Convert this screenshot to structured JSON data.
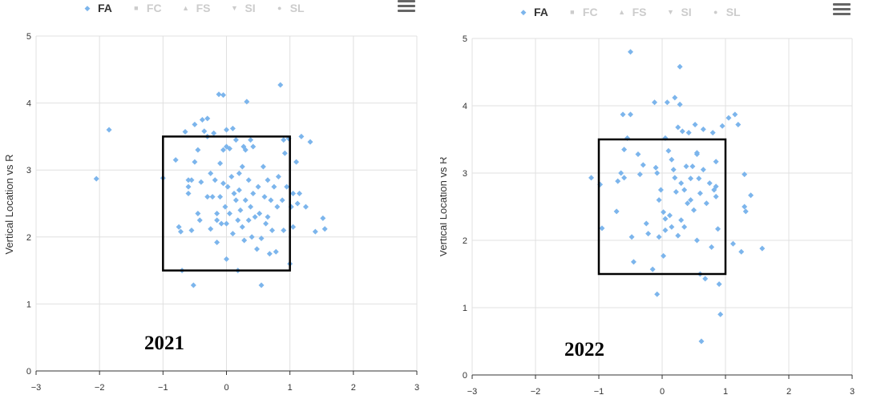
{
  "legend": [
    {
      "label": "FA",
      "symbol": "◆",
      "active": true
    },
    {
      "label": "FC",
      "symbol": "■",
      "active": false
    },
    {
      "label": "FS",
      "symbol": "▲",
      "active": false
    },
    {
      "label": "SI",
      "symbol": "▼",
      "active": false
    },
    {
      "label": "SL",
      "symbol": "●",
      "active": false
    }
  ],
  "menu_icon": "hamburger-menu-icon",
  "point_color": "#7CB5EC",
  "chart_data": [
    {
      "type": "scatter",
      "annotation": "2021",
      "ylabel": "Vertical Location vs R",
      "xlim": [
        -3,
        3
      ],
      "ylim": [
        0,
        5
      ],
      "xticks": [
        -3,
        -2,
        -1,
        0,
        1,
        2,
        3
      ],
      "yticks": [
        0,
        1,
        2,
        3,
        4,
        5
      ],
      "strike_zone": {
        "x": [
          -1,
          1
        ],
        "y": [
          1.5,
          3.5
        ]
      },
      "series": [
        {
          "name": "FA",
          "points": [
            [
              -2.05,
              2.87
            ],
            [
              -1.85,
              3.6
            ],
            [
              -1.0,
              2.88
            ],
            [
              -0.8,
              3.15
            ],
            [
              -0.75,
              2.15
            ],
            [
              -0.72,
              2.08
            ],
            [
              -0.65,
              3.57
            ],
            [
              -0.6,
              2.65
            ],
            [
              -0.6,
              2.75
            ],
            [
              -0.55,
              2.85
            ],
            [
              -0.55,
              2.1
            ],
            [
              -0.5,
              3.12
            ],
            [
              -0.5,
              3.68
            ],
            [
              -0.45,
              3.3
            ],
            [
              -0.45,
              2.35
            ],
            [
              -0.42,
              2.25
            ],
            [
              -0.4,
              2.82
            ],
            [
              -0.38,
              3.75
            ],
            [
              -0.35,
              3.58
            ],
            [
              -0.3,
              3.77
            ],
            [
              -0.3,
              3.5
            ],
            [
              -0.25,
              2.95
            ],
            [
              -0.25,
              2.12
            ],
            [
              -0.22,
              2.6
            ],
            [
              -0.2,
              3.55
            ],
            [
              -0.18,
              2.85
            ],
            [
              -0.15,
              2.35
            ],
            [
              -0.15,
              2.25
            ],
            [
              -0.15,
              1.92
            ],
            [
              -0.12,
              4.13
            ],
            [
              -0.1,
              3.1
            ],
            [
              -0.1,
              2.6
            ],
            [
              -0.08,
              2.2
            ],
            [
              -0.05,
              4.12
            ],
            [
              -0.05,
              3.3
            ],
            [
              -0.05,
              2.8
            ],
            [
              -0.02,
              2.45
            ],
            [
              0.0,
              3.6
            ],
            [
              0.0,
              3.35
            ],
            [
              0.0,
              2.2
            ],
            [
              0.0,
              1.67
            ],
            [
              0.02,
              2.75
            ],
            [
              0.05,
              3.32
            ],
            [
              0.05,
              2.35
            ],
            [
              0.08,
              2.9
            ],
            [
              0.1,
              3.62
            ],
            [
              0.1,
              2.05
            ],
            [
              0.12,
              2.65
            ],
            [
              0.15,
              3.45
            ],
            [
              0.15,
              2.55
            ],
            [
              0.18,
              2.25
            ],
            [
              0.18,
              1.5
            ],
            [
              0.2,
              2.95
            ],
            [
              0.2,
              2.7
            ],
            [
              0.22,
              2.4
            ],
            [
              0.25,
              3.05
            ],
            [
              0.25,
              2.15
            ],
            [
              0.28,
              1.95
            ],
            [
              0.3,
              3.3
            ],
            [
              0.3,
              2.55
            ],
            [
              0.32,
              4.02
            ],
            [
              0.35,
              2.85
            ],
            [
              0.35,
              2.25
            ],
            [
              0.38,
              3.45
            ],
            [
              0.38,
              2.45
            ],
            [
              0.4,
              2.0
            ],
            [
              0.42,
              3.35
            ],
            [
              0.42,
              2.65
            ],
            [
              0.45,
              2.3
            ],
            [
              0.48,
              1.82
            ],
            [
              0.5,
              2.75
            ],
            [
              0.52,
              2.35
            ],
            [
              0.55,
              1.98
            ],
            [
              0.55,
              1.28
            ],
            [
              0.58,
              3.05
            ],
            [
              0.6,
              2.6
            ],
            [
              0.62,
              2.2
            ],
            [
              0.65,
              2.85
            ],
            [
              0.68,
              1.75
            ],
            [
              0.7,
              2.55
            ],
            [
              0.72,
              2.1
            ],
            [
              0.75,
              2.75
            ],
            [
              0.78,
              1.78
            ],
            [
              0.8,
              2.45
            ],
            [
              0.82,
              2.9
            ],
            [
              0.85,
              4.27
            ],
            [
              0.88,
              2.55
            ],
            [
              0.9,
              3.45
            ],
            [
              0.9,
              2.1
            ],
            [
              0.92,
              3.25
            ],
            [
              0.95,
              2.75
            ],
            [
              0.98,
              3.47
            ],
            [
              1.0,
              1.6
            ],
            [
              1.02,
              2.45
            ],
            [
              1.05,
              2.65
            ],
            [
              1.05,
              2.15
            ],
            [
              1.1,
              3.12
            ],
            [
              1.12,
              2.5
            ],
            [
              1.15,
              2.65
            ],
            [
              1.18,
              3.5
            ],
            [
              1.25,
              2.45
            ],
            [
              1.32,
              3.42
            ],
            [
              1.4,
              2.08
            ],
            [
              1.52,
              2.28
            ],
            [
              1.55,
              2.12
            ],
            [
              -0.52,
              1.28
            ],
            [
              -0.7,
              1.5
            ],
            [
              -0.3,
              2.6
            ],
            [
              0.27,
              3.35
            ],
            [
              -0.6,
              2.85
            ],
            [
              0.65,
              2.3
            ]
          ]
        }
      ]
    },
    {
      "type": "scatter",
      "annotation": "2022",
      "ylabel": "Vertical Location vs R",
      "xlim": [
        -3,
        3
      ],
      "ylim": [
        0,
        5
      ],
      "xticks": [
        -3,
        -2,
        -1,
        0,
        1,
        2,
        3
      ],
      "yticks": [
        0,
        1,
        2,
        3,
        4,
        5
      ],
      "strike_zone": {
        "x": [
          -1,
          1
        ],
        "y": [
          1.5,
          3.5
        ]
      },
      "series": [
        {
          "name": "FA",
          "points": [
            [
              -1.12,
              2.93
            ],
            [
              -0.98,
              2.83
            ],
            [
              -0.95,
              2.18
            ],
            [
              -0.72,
              2.43
            ],
            [
              -0.7,
              2.88
            ],
            [
              -0.65,
              3.0
            ],
            [
              -0.62,
              3.87
            ],
            [
              -0.6,
              3.35
            ],
            [
              -0.6,
              2.93
            ],
            [
              -0.55,
              3.52
            ],
            [
              -0.5,
              4.8
            ],
            [
              -0.5,
              3.87
            ],
            [
              -0.48,
              2.05
            ],
            [
              -0.45,
              1.68
            ],
            [
              -0.38,
              3.28
            ],
            [
              -0.3,
              3.12
            ],
            [
              -0.22,
              2.1
            ],
            [
              -0.15,
              1.57
            ],
            [
              -0.12,
              4.05
            ],
            [
              -0.1,
              3.08
            ],
            [
              -0.08,
              3.0
            ],
            [
              -0.08,
              1.2
            ],
            [
              -0.05,
              2.6
            ],
            [
              -0.05,
              2.05
            ],
            [
              -0.02,
              2.75
            ],
            [
              0.02,
              2.42
            ],
            [
              0.02,
              1.77
            ],
            [
              0.05,
              3.52
            ],
            [
              0.05,
              2.15
            ],
            [
              0.08,
              4.05
            ],
            [
              0.1,
              3.33
            ],
            [
              0.12,
              2.37
            ],
            [
              0.15,
              2.2
            ],
            [
              0.18,
              3.05
            ],
            [
              0.2,
              2.93
            ],
            [
              0.2,
              4.12
            ],
            [
              0.22,
              2.72
            ],
            [
              0.25,
              2.07
            ],
            [
              0.25,
              3.68
            ],
            [
              0.28,
              4.58
            ],
            [
              0.28,
              4.02
            ],
            [
              0.3,
              2.85
            ],
            [
              0.32,
              3.62
            ],
            [
              0.35,
              2.2
            ],
            [
              0.38,
              3.1
            ],
            [
              0.4,
              2.55
            ],
            [
              0.42,
              3.6
            ],
            [
              0.45,
              2.6
            ],
            [
              0.48,
              3.1
            ],
            [
              0.5,
              2.45
            ],
            [
              0.52,
              3.72
            ],
            [
              0.55,
              3.28
            ],
            [
              0.55,
              2.0
            ],
            [
              0.58,
              2.92
            ],
            [
              0.6,
              2.7
            ],
            [
              0.6,
              1.5
            ],
            [
              0.62,
              0.5
            ],
            [
              0.65,
              3.65
            ],
            [
              0.68,
              1.43
            ],
            [
              0.7,
              2.55
            ],
            [
              0.75,
              2.85
            ],
            [
              0.78,
              1.9
            ],
            [
              0.8,
              3.6
            ],
            [
              0.82,
              2.75
            ],
            [
              0.85,
              2.65
            ],
            [
              0.85,
              3.17
            ],
            [
              0.88,
              2.17
            ],
            [
              0.9,
              1.35
            ],
            [
              0.92,
              0.9
            ],
            [
              0.95,
              3.7
            ],
            [
              1.05,
              3.82
            ],
            [
              1.12,
              1.95
            ],
            [
              1.15,
              3.87
            ],
            [
              1.2,
              3.72
            ],
            [
              1.25,
              1.83
            ],
            [
              1.3,
              2.98
            ],
            [
              1.3,
              2.5
            ],
            [
              1.32,
              2.43
            ],
            [
              1.4,
              2.67
            ],
            [
              1.58,
              1.88
            ],
            [
              0.35,
              2.75
            ],
            [
              0.05,
              2.32
            ],
            [
              -0.25,
              2.25
            ],
            [
              0.45,
              2.92
            ],
            [
              0.15,
              3.2
            ],
            [
              0.65,
              3.05
            ],
            [
              0.85,
              2.8
            ],
            [
              -0.35,
              2.98
            ],
            [
              0.3,
              2.3
            ],
            [
              0.55,
              3.3
            ]
          ]
        }
      ]
    }
  ]
}
